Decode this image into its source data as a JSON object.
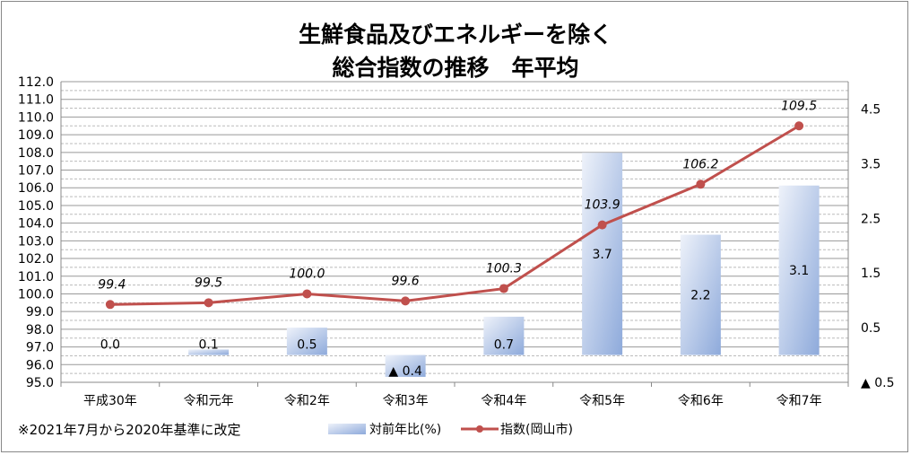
{
  "chart_data": {
    "type": "bar+line",
    "title_lines": [
      "生鮮食品及びエネルギーを除く",
      "総合指数の推移　年平均"
    ],
    "categories": [
      "平成30年",
      "令和元年",
      "令和2年",
      "令和3年",
      "令和4年",
      "令和5年",
      "令和6年",
      "令和7年"
    ],
    "series": [
      {
        "name": "対前年比(%)",
        "type": "bar",
        "axis": "right",
        "values": [
          0.0,
          0.1,
          0.5,
          -0.4,
          0.7,
          3.7,
          2.2,
          3.1
        ],
        "labels": [
          "0.0",
          "0.1",
          "0.5",
          "▲ 0.4",
          "0.7",
          "3.7",
          "2.2",
          "3.1"
        ],
        "color": "#8eaadb"
      },
      {
        "name": "指数(岡山市)",
        "type": "line",
        "axis": "left",
        "values": [
          99.4,
          99.5,
          100.0,
          99.6,
          100.3,
          103.9,
          106.2,
          109.5
        ],
        "labels": [
          "99.4",
          "99.5",
          "100.0",
          "99.6",
          "100.3",
          "103.9",
          "106.2",
          "109.5"
        ],
        "color": "#c0504d"
      }
    ],
    "left_axis": {
      "range": [
        95.0,
        112.0
      ],
      "major_step": 1.0,
      "minor_step": 0.5,
      "ticks": [
        "95.0",
        "96.0",
        "97.0",
        "98.0",
        "99.0",
        "100.0",
        "101.0",
        "102.0",
        "103.0",
        "104.0",
        "105.0",
        "106.0",
        "107.0",
        "108.0",
        "109.0",
        "110.0",
        "111.0",
        "112.0"
      ]
    },
    "right_axis": {
      "range": [
        -0.5,
        5.0
      ],
      "tick_values": [
        -0.5,
        0.5,
        1.5,
        2.5,
        3.5,
        4.5
      ],
      "ticks": [
        "▲ 0.5",
        "0.5",
        "1.5",
        "2.5",
        "3.5",
        "4.5"
      ]
    },
    "grid": true,
    "legend_placement": "bottom",
    "note": "※2021年7月から2020年基準に改定"
  }
}
